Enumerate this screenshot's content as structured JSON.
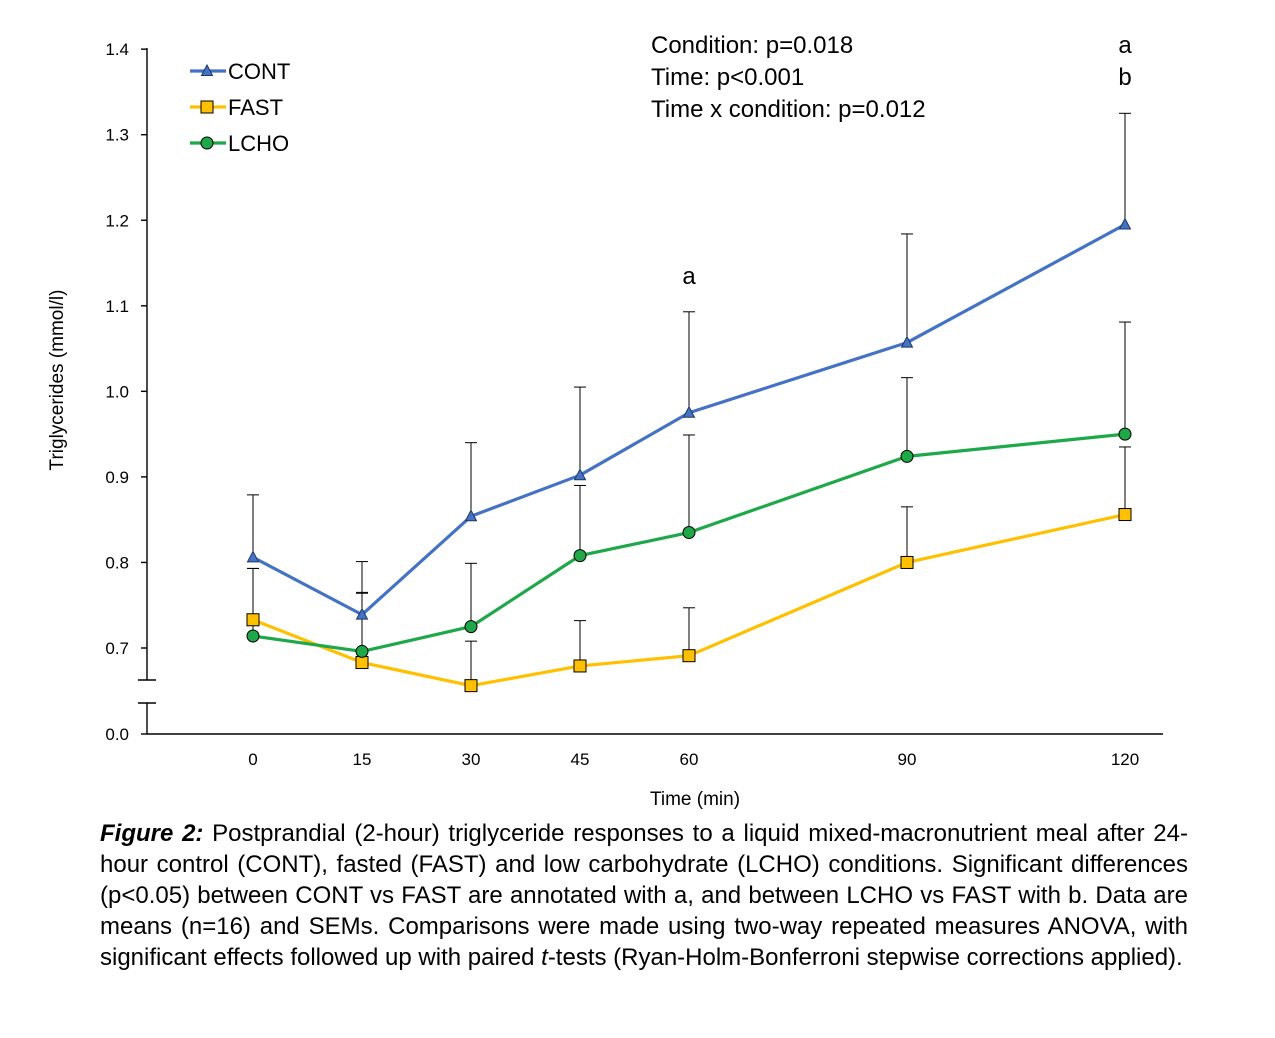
{
  "chart_data": {
    "type": "line",
    "xlabel": "Time (min)",
    "ylabel": "Triglycerides (mmol/l)",
    "x": [
      0,
      15,
      30,
      45,
      60,
      90,
      120
    ],
    "x_ticks": [
      "0",
      "15",
      "30",
      "45",
      "60",
      "90",
      "120"
    ],
    "y_ticks": [
      "0.0",
      "0.7",
      "0.8",
      "0.9",
      "1.0",
      "1.1",
      "1.2",
      "1.3",
      "1.4"
    ],
    "ylim": [
      0.65,
      1.4
    ],
    "y_axis_break": true,
    "legend_position": "top-left",
    "grid": false,
    "series": [
      {
        "name": "CONT",
        "color": "#4472C4",
        "marker": "triangle",
        "values": [
          0.806,
          0.739,
          0.854,
          0.902,
          0.975,
          1.057,
          1.195
        ],
        "sem": [
          0.073,
          0.062,
          0.086,
          0.103,
          0.118,
          0.127,
          0.13
        ]
      },
      {
        "name": "FAST",
        "color": "#FFC000",
        "marker": "square",
        "values": [
          0.733,
          0.683,
          0.656,
          0.679,
          0.691,
          0.8,
          0.856
        ],
        "sem": [
          0.06,
          0.081,
          0.052,
          0.053,
          0.056,
          0.065,
          0.079
        ]
      },
      {
        "name": "LCHO",
        "color": "#1EA84A",
        "marker": "circle",
        "values": [
          0.714,
          0.696,
          0.725,
          0.808,
          0.835,
          0.924,
          0.95
        ],
        "sem": [
          0.079,
          0.069,
          0.074,
          0.082,
          0.114,
          0.092,
          0.131
        ]
      }
    ],
    "annotations": [
      {
        "x": 60,
        "letters": [
          "a"
        ]
      },
      {
        "x": 120,
        "letters": [
          "a",
          "b"
        ]
      }
    ]
  },
  "stats_text": [
    "Condition: p=0.018",
    "Time: p<0.001",
    "Time x condition: p=0.012"
  ],
  "caption": {
    "label": "Figure 2:",
    "text_before_t": " Postprandial (2-hour) triglyceride responses to a liquid mixed-macronutrient meal after 24-hour control (CONT), fasted (FAST) and low carbohydrate (LCHO) conditions. Significant differences (p<0.05) between CONT vs FAST are annotated with a, and between LCHO vs FAST with b. Data are means (n=16) and SEMs. Comparisons were made using two-way repeated measures ANOVA, with significant effects followed up with paired ",
    "t_italic": "t",
    "text_after_t": "-tests (Ryan-Holm-Bonferroni stepwise corrections applied)."
  }
}
